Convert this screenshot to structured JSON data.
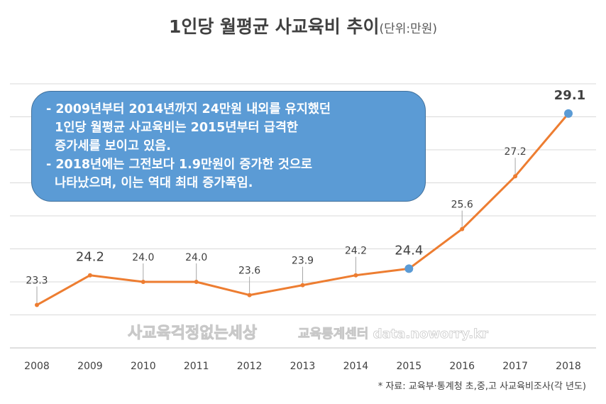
{
  "chart_data": {
    "type": "line",
    "title": "1인당 월평균 사교육비 추이",
    "unit": "(단위:만원)",
    "categories": [
      "2008",
      "2009",
      "2010",
      "2011",
      "2012",
      "2013",
      "2014",
      "2015",
      "2016",
      "2017",
      "2018"
    ],
    "series": [
      {
        "name": "1인당 월평균 사교육비",
        "values": [
          23.3,
          24.2,
          24.0,
          24.0,
          23.6,
          23.9,
          24.2,
          24.4,
          25.6,
          27.2,
          29.1
        ]
      }
    ],
    "data_labels": [
      "23.3",
      "24.2",
      "24.0",
      "24.0",
      "23.6",
      "23.9",
      "24.2",
      "24.4",
      "25.6",
      "27.2",
      "29.1"
    ],
    "highlighted": [
      "2009",
      "2015",
      "2018"
    ],
    "ylim": [
      22,
      30
    ],
    "grid": true,
    "colors": {
      "line": "#ed7d31",
      "highlight_marker": "#5b9bd5",
      "grid": "#d9d9d9"
    }
  },
  "callout": {
    "lines": [
      "- 2009년부터 2014년까지 24만원 내외를 유지했던",
      "  1인당 월평균 사교육비는 2015년부터 급격한",
      "  증가세를 보이고 있음.",
      "- 2018년에는 그전보다 1.9만원이 증가한 것으로",
      "  나타났으며, 이는 역대 최대 증가폭임."
    ]
  },
  "watermark": {
    "line1": "사교육걱정없는세상",
    "line2": "교육통계센터 data.noworry.kr"
  },
  "source": "* 자료: 교육부·통계청 초,중,고 사교육비조사(각 년도)"
}
